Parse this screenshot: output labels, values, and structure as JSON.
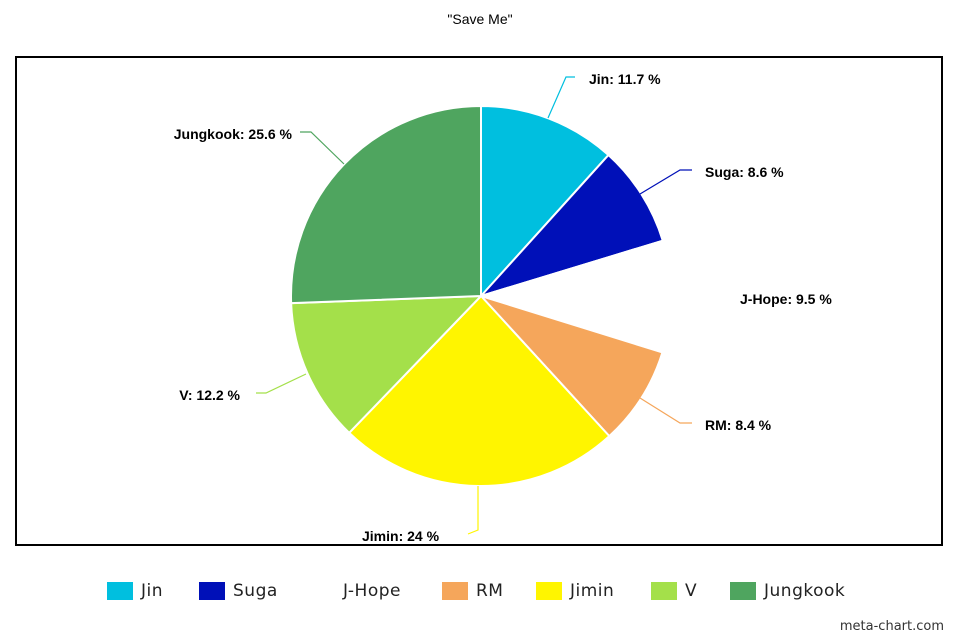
{
  "chart_data": {
    "type": "pie",
    "title": "\"Save Me\"",
    "slices": [
      {
        "name": "Jin",
        "value": 11.7,
        "label": "Jin: 11.7 %",
        "color": "#00bfdf"
      },
      {
        "name": "Suga",
        "value": 8.6,
        "label": "Suga: 8.6 %",
        "color": "#0010b8"
      },
      {
        "name": "J-Hope",
        "value": 9.5,
        "label": "J-Hope: 9.5 %",
        "color": "#ffffff"
      },
      {
        "name": "RM",
        "value": 8.4,
        "label": "RM: 8.4 %",
        "color": "#f5a65b"
      },
      {
        "name": "Jimin",
        "value": 24,
        "label": "Jimin: 24 %",
        "color": "#fff500"
      },
      {
        "name": "V",
        "value": 12.2,
        "label": "V: 12.2 %",
        "color": "#a4e04a"
      },
      {
        "name": "Jungkook",
        "value": 25.6,
        "label": "Jungkook: 25.6 %",
        "color": "#4fa55f"
      }
    ],
    "legend_position": "bottom"
  },
  "watermark": "meta-chart.com"
}
